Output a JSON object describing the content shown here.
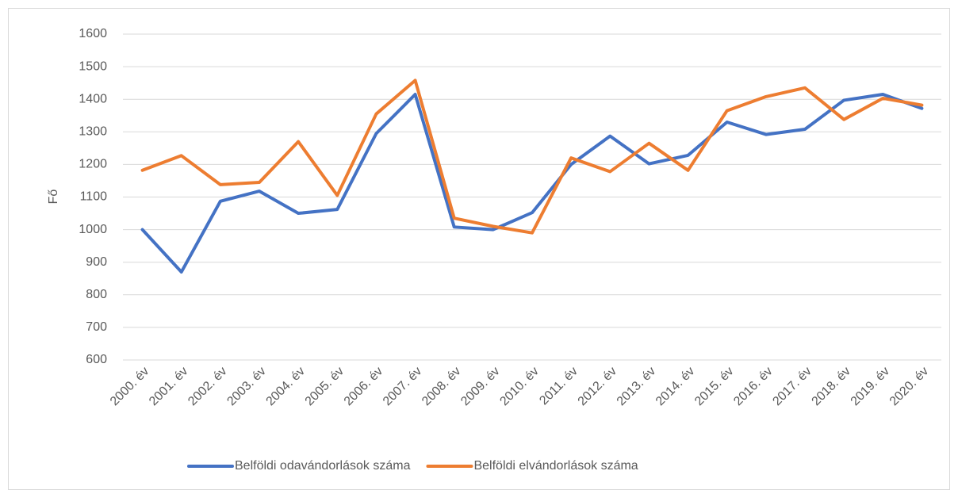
{
  "chart_data": {
    "type": "line",
    "y_label": "Fő",
    "categories": [
      "2000. év",
      "2001. év",
      "2002. év",
      "2003. év",
      "2004. év",
      "2005. év",
      "2006. év",
      "2007. év",
      "2008. év",
      "2009. év",
      "2010. év",
      "2011. év",
      "2012. év",
      "2013. év",
      "2014. év",
      "2015. év",
      "2016. év",
      "2017. év",
      "2018. év",
      "2019. év",
      "2020. év"
    ],
    "series": [
      {
        "name": "Belföldi odavándorlások száma",
        "color": "#4472c4",
        "values": [
          1000,
          870,
          1087,
          1118,
          1050,
          1062,
          1295,
          1415,
          1008,
          1000,
          1052,
          1200,
          1287,
          1202,
          1228,
          1330,
          1292,
          1308,
          1397,
          1415,
          1372
        ]
      },
      {
        "name": "Belföldi elvándorlások száma",
        "color": "#ed7d31",
        "values": [
          1182,
          1227,
          1138,
          1145,
          1270,
          1105,
          1355,
          1458,
          1035,
          1010,
          990,
          1220,
          1178,
          1265,
          1182,
          1365,
          1408,
          1435,
          1338,
          1403,
          1382
        ]
      }
    ],
    "ylim": [
      600,
      1600
    ],
    "yticks": [
      600,
      700,
      800,
      900,
      1000,
      1100,
      1200,
      1300,
      1400,
      1500,
      1600
    ],
    "grid": true,
    "legend": "bottom"
  }
}
